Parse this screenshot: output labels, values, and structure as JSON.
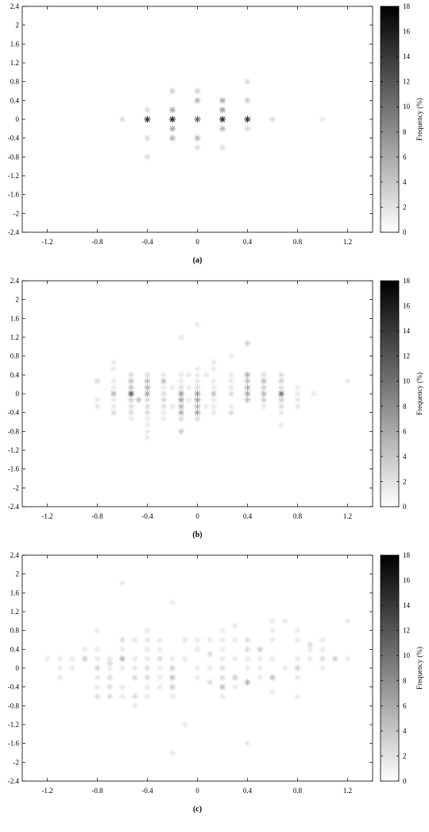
{
  "chart_data": [
    {
      "type": "scatter",
      "panel_label": "(a)",
      "xlim": [
        -1.4,
        1.4
      ],
      "ylim": [
        -2.4,
        2.4
      ],
      "x_ticks": [
        "-1.2",
        "-0.8",
        "-0.4",
        "0",
        "0.4",
        "0.8",
        "1.2"
      ],
      "y_ticks": [
        "-2.4",
        "-2",
        "-1.6",
        "-1.2",
        "-0.8",
        "-0.4",
        "0",
        "0.4",
        "0.8",
        "1.2",
        "1.6",
        "2",
        "2.4"
      ],
      "colorbar": {
        "label": "Frequency (%)",
        "min": 0,
        "max": 18,
        "ticks": [
          "0",
          "2",
          "4",
          "6",
          "8",
          "10",
          "12",
          "14",
          "16",
          "18"
        ]
      },
      "marker": "asterisk",
      "points": [
        [
          -0.6,
          0,
          2
        ],
        [
          -0.4,
          0.2,
          2
        ],
        [
          -0.4,
          0,
          16
        ],
        [
          -0.4,
          -0.4,
          2
        ],
        [
          -0.4,
          -0.8,
          2
        ],
        [
          -0.2,
          0.6,
          3
        ],
        [
          -0.2,
          0.2,
          6
        ],
        [
          -0.2,
          0,
          17
        ],
        [
          -0.2,
          -0.2,
          6
        ],
        [
          -0.2,
          -0.4,
          5
        ],
        [
          0,
          0.6,
          3
        ],
        [
          0,
          0.4,
          5
        ],
        [
          0,
          0,
          12
        ],
        [
          0,
          -0.4,
          5
        ],
        [
          0,
          -0.6,
          2
        ],
        [
          0.2,
          0.4,
          6
        ],
        [
          0.2,
          0.2,
          7
        ],
        [
          0.2,
          0,
          17
        ],
        [
          0.2,
          -0.2,
          5
        ],
        [
          0.2,
          -0.6,
          2
        ],
        [
          0.4,
          0.8,
          2
        ],
        [
          0.4,
          0.4,
          3
        ],
        [
          0.4,
          0,
          16
        ],
        [
          0.4,
          -0.2,
          2
        ],
        [
          0.6,
          0,
          2
        ],
        [
          1.0,
          0,
          1
        ]
      ]
    },
    {
      "type": "scatter",
      "panel_label": "(b)",
      "xlim": [
        -1.4,
        1.4
      ],
      "ylim": [
        -2.4,
        2.4
      ],
      "x_ticks": [
        "-1.2",
        "-0.8",
        "-0.4",
        "0",
        "0.4",
        "0.8",
        "1.2"
      ],
      "y_ticks": [
        "-2.4",
        "-2",
        "-1.6",
        "-1.2",
        "-0.8",
        "-0.4",
        "0",
        "0.4",
        "0.8",
        "1.2",
        "1.6",
        "2",
        "2.4"
      ],
      "colorbar": {
        "label": "Frequency (%)",
        "min": 0,
        "max": 18,
        "ticks": [
          "0",
          "2",
          "4",
          "6",
          "8",
          "10",
          "12",
          "14",
          "16",
          "18"
        ]
      },
      "marker": "asterisk",
      "points": [
        [
          -0.8,
          0.27,
          2
        ],
        [
          -0.8,
          -0.13,
          1
        ],
        [
          -0.8,
          -0.27,
          1
        ],
        [
          -0.67,
          0.67,
          1
        ],
        [
          -0.67,
          0.53,
          1
        ],
        [
          -0.67,
          0.27,
          1
        ],
        [
          -0.67,
          0.13,
          1
        ],
        [
          -0.67,
          0,
          5
        ],
        [
          -0.67,
          -0.13,
          1
        ],
        [
          -0.67,
          -0.27,
          1
        ],
        [
          -0.67,
          -0.4,
          2
        ],
        [
          -0.53,
          0.4,
          2
        ],
        [
          -0.53,
          0.27,
          4
        ],
        [
          -0.53,
          0.13,
          4
        ],
        [
          -0.53,
          0,
          12
        ],
        [
          -0.53,
          -0.13,
          3
        ],
        [
          -0.53,
          -0.27,
          2
        ],
        [
          -0.53,
          -0.4,
          2
        ],
        [
          -0.53,
          -0.53,
          1
        ],
        [
          -0.47,
          -0.13,
          4
        ],
        [
          -0.4,
          0.4,
          2
        ],
        [
          -0.4,
          0.27,
          4
        ],
        [
          -0.4,
          0.13,
          5
        ],
        [
          -0.4,
          0,
          6
        ],
        [
          -0.4,
          -0.13,
          2
        ],
        [
          -0.4,
          -0.27,
          2
        ],
        [
          -0.4,
          -0.4,
          2
        ],
        [
          -0.4,
          -0.53,
          1
        ],
        [
          -0.4,
          -0.67,
          1
        ],
        [
          -0.4,
          -0.8,
          1
        ],
        [
          -0.4,
          -0.93,
          1
        ],
        [
          -0.27,
          0.4,
          1
        ],
        [
          -0.27,
          0.27,
          4
        ],
        [
          -0.27,
          0.13,
          1
        ],
        [
          -0.27,
          0,
          2
        ],
        [
          -0.27,
          -0.13,
          2
        ],
        [
          -0.27,
          -0.27,
          2
        ],
        [
          -0.27,
          -0.4,
          1
        ],
        [
          -0.27,
          -0.53,
          1
        ],
        [
          -0.2,
          0.13,
          1
        ],
        [
          -0.2,
          -0.27,
          1
        ],
        [
          -0.13,
          1.2,
          1
        ],
        [
          -0.13,
          0.4,
          1
        ],
        [
          -0.13,
          0.27,
          1
        ],
        [
          -0.13,
          0.13,
          2
        ],
        [
          -0.13,
          0,
          7
        ],
        [
          -0.13,
          -0.13,
          6
        ],
        [
          -0.13,
          -0.27,
          5
        ],
        [
          -0.13,
          -0.4,
          5
        ],
        [
          -0.13,
          -0.53,
          2
        ],
        [
          -0.13,
          -0.8,
          3
        ],
        [
          -0.07,
          0.4,
          1
        ],
        [
          -0.07,
          0.13,
          1
        ],
        [
          -0.07,
          -0.13,
          1
        ],
        [
          0,
          1.47,
          1
        ],
        [
          0,
          0.53,
          1
        ],
        [
          0,
          0.4,
          1
        ],
        [
          0,
          0.27,
          1
        ],
        [
          0,
          0.13,
          2
        ],
        [
          0,
          0,
          7
        ],
        [
          0,
          -0.13,
          6
        ],
        [
          0,
          -0.27,
          5
        ],
        [
          0,
          -0.4,
          6
        ],
        [
          0,
          -0.53,
          2
        ],
        [
          0.07,
          0.4,
          1
        ],
        [
          0.07,
          -0.27,
          1
        ],
        [
          0.13,
          0.67,
          1
        ],
        [
          0.13,
          0.53,
          1
        ],
        [
          0.13,
          0.27,
          1
        ],
        [
          0.13,
          0.13,
          1
        ],
        [
          0.13,
          0,
          4
        ],
        [
          0.13,
          -0.13,
          1
        ],
        [
          0.13,
          -0.27,
          1
        ],
        [
          0.13,
          -0.4,
          1
        ],
        [
          0.27,
          0.8,
          1
        ],
        [
          0.27,
          0.4,
          1
        ],
        [
          0.27,
          0.27,
          1
        ],
        [
          0.27,
          0.13,
          1
        ],
        [
          0.27,
          0,
          2
        ],
        [
          0.27,
          -0.27,
          1
        ],
        [
          0.27,
          -0.4,
          2
        ],
        [
          0.4,
          1.07,
          3
        ],
        [
          0.4,
          0.4,
          5
        ],
        [
          0.4,
          0.27,
          4
        ],
        [
          0.4,
          0.13,
          5
        ],
        [
          0.4,
          0,
          6
        ],
        [
          0.4,
          -0.13,
          4
        ],
        [
          0.53,
          0.4,
          2
        ],
        [
          0.53,
          0.27,
          4
        ],
        [
          0.53,
          0.13,
          3
        ],
        [
          0.53,
          0,
          5
        ],
        [
          0.53,
          -0.13,
          3
        ],
        [
          0.53,
          -0.27,
          1
        ],
        [
          0.67,
          0.4,
          2
        ],
        [
          0.67,
          0.27,
          3
        ],
        [
          0.67,
          0.13,
          2
        ],
        [
          0.67,
          0,
          10
        ],
        [
          0.67,
          -0.13,
          3
        ],
        [
          0.67,
          -0.27,
          2
        ],
        [
          0.67,
          -0.4,
          1
        ],
        [
          0.67,
          -0.67,
          1
        ],
        [
          0.8,
          0.13,
          1
        ],
        [
          0.8,
          0,
          1
        ],
        [
          0.8,
          -0.13,
          1
        ],
        [
          0.8,
          -0.27,
          1
        ],
        [
          0.93,
          0,
          1
        ],
        [
          1.2,
          0.27,
          1
        ]
      ]
    },
    {
      "type": "scatter",
      "panel_label": "(c)",
      "xlim": [
        -1.4,
        1.4
      ],
      "ylim": [
        -2.4,
        2.4
      ],
      "x_ticks": [
        "-1.2",
        "-0.8",
        "-0.4",
        "0",
        "0.4",
        "0.8",
        "1.2"
      ],
      "y_ticks": [
        "-2.4",
        "-2",
        "-1.6",
        "-1.2",
        "-0.8",
        "-0.4",
        "0",
        "0.4",
        "0.8",
        "1.2",
        "1.6",
        "2",
        "2.4"
      ],
      "colorbar": {
        "label": "Frequency (%)",
        "min": 0,
        "max": 18,
        "ticks": [
          "0",
          "2",
          "4",
          "6",
          "8",
          "10",
          "12",
          "14",
          "16",
          "18"
        ]
      },
      "marker": "asterisk",
      "points": [
        [
          -1.2,
          0.2,
          1
        ],
        [
          -1.1,
          0.2,
          1
        ],
        [
          -1.1,
          0,
          1
        ],
        [
          -1.1,
          -0.2,
          1
        ],
        [
          -1.0,
          0.2,
          1
        ],
        [
          -1.0,
          0,
          1
        ],
        [
          -0.9,
          0.4,
          1
        ],
        [
          -0.9,
          0.2,
          3
        ],
        [
          -0.8,
          0.8,
          1
        ],
        [
          -0.8,
          0.4,
          1
        ],
        [
          -0.8,
          0.2,
          1
        ],
        [
          -0.8,
          0,
          3
        ],
        [
          -0.8,
          -0.2,
          1
        ],
        [
          -0.8,
          -0.4,
          1
        ],
        [
          -0.8,
          -0.6,
          2
        ],
        [
          -0.7,
          0.2,
          1
        ],
        [
          -0.7,
          0.1,
          2
        ],
        [
          -0.7,
          0,
          1
        ],
        [
          -0.7,
          -0.2,
          2
        ],
        [
          -0.7,
          -0.4,
          2
        ],
        [
          -0.7,
          -0.6,
          2
        ],
        [
          -0.6,
          1.8,
          1
        ],
        [
          -0.6,
          0.6,
          2
        ],
        [
          -0.6,
          0.4,
          1
        ],
        [
          -0.6,
          0.2,
          5
        ],
        [
          -0.6,
          0,
          1
        ],
        [
          -0.6,
          -0.4,
          1
        ],
        [
          -0.6,
          -0.6,
          1
        ],
        [
          -0.5,
          0.6,
          1
        ],
        [
          -0.5,
          0.2,
          1
        ],
        [
          -0.5,
          0,
          1
        ],
        [
          -0.5,
          -0.2,
          2
        ],
        [
          -0.5,
          -0.6,
          2
        ],
        [
          -0.5,
          -0.8,
          1
        ],
        [
          -0.4,
          0.8,
          1
        ],
        [
          -0.4,
          0.6,
          1
        ],
        [
          -0.4,
          0.4,
          1
        ],
        [
          -0.4,
          0.2,
          1
        ],
        [
          -0.4,
          0,
          2
        ],
        [
          -0.4,
          -0.2,
          2
        ],
        [
          -0.4,
          -0.4,
          1
        ],
        [
          -0.4,
          -0.6,
          1
        ],
        [
          -0.3,
          0.6,
          1
        ],
        [
          -0.3,
          0.4,
          1
        ],
        [
          -0.3,
          0.2,
          2
        ],
        [
          -0.3,
          0,
          1
        ],
        [
          -0.3,
          -0.2,
          1
        ],
        [
          -0.3,
          -0.4,
          1
        ],
        [
          -0.2,
          1.4,
          1
        ],
        [
          -0.2,
          0.2,
          1
        ],
        [
          -0.2,
          0,
          3
        ],
        [
          -0.2,
          -0.2,
          4
        ],
        [
          -0.2,
          -0.4,
          3
        ],
        [
          -0.2,
          -0.6,
          1
        ],
        [
          -0.2,
          -1.8,
          1
        ],
        [
          -0.1,
          0.6,
          1
        ],
        [
          -0.1,
          0.2,
          1
        ],
        [
          -0.1,
          -1.2,
          1
        ],
        [
          0,
          0.6,
          1
        ],
        [
          0,
          0.4,
          1
        ],
        [
          0,
          0,
          1
        ],
        [
          0,
          -0.2,
          1
        ],
        [
          0.1,
          0.6,
          1
        ],
        [
          0.1,
          0.3,
          2
        ],
        [
          0.1,
          0,
          1
        ],
        [
          0.1,
          -0.3,
          2
        ],
        [
          0.2,
          0.8,
          1
        ],
        [
          0.2,
          0.6,
          1
        ],
        [
          0.2,
          0.4,
          1
        ],
        [
          0.2,
          0.2,
          1
        ],
        [
          0.2,
          0,
          2
        ],
        [
          0.2,
          -0.2,
          2
        ],
        [
          0.2,
          -0.4,
          4
        ],
        [
          0.2,
          -0.6,
          1
        ],
        [
          0.3,
          0.9,
          1
        ],
        [
          0.3,
          0.6,
          1
        ],
        [
          0.3,
          0.2,
          1
        ],
        [
          0.3,
          -0.2,
          3
        ],
        [
          0.3,
          -0.4,
          1
        ],
        [
          0.4,
          0.6,
          2
        ],
        [
          0.4,
          0.4,
          2
        ],
        [
          0.4,
          0.2,
          1
        ],
        [
          0.4,
          0,
          1
        ],
        [
          0.4,
          -0.3,
          5
        ],
        [
          0.4,
          -1.6,
          1
        ],
        [
          0.5,
          0.4,
          3
        ],
        [
          0.5,
          0.2,
          1
        ],
        [
          0.5,
          0,
          1
        ],
        [
          0.5,
          -0.2,
          1
        ],
        [
          0.6,
          1.0,
          1
        ],
        [
          0.6,
          0.8,
          1
        ],
        [
          0.6,
          0.6,
          1
        ],
        [
          0.6,
          0.2,
          1
        ],
        [
          0.6,
          -0.2,
          4
        ],
        [
          0.6,
          -0.5,
          1
        ],
        [
          0.7,
          1.0,
          1
        ],
        [
          0.7,
          0,
          1
        ],
        [
          0.8,
          0.8,
          1
        ],
        [
          0.8,
          0.6,
          1
        ],
        [
          0.8,
          0.2,
          1
        ],
        [
          0.8,
          0,
          3
        ],
        [
          0.8,
          -0.2,
          1
        ],
        [
          0.8,
          -0.6,
          1
        ],
        [
          0.9,
          0.5,
          2
        ],
        [
          0.9,
          0.4,
          1
        ],
        [
          0.9,
          0.2,
          1
        ],
        [
          1.0,
          0.6,
          1
        ],
        [
          1.0,
          0.4,
          1
        ],
        [
          1.0,
          0.2,
          2
        ],
        [
          1.0,
          0,
          1
        ],
        [
          1.1,
          0.2,
          3
        ],
        [
          1.2,
          1.0,
          1
        ],
        [
          1.2,
          0.2,
          1
        ]
      ]
    }
  ]
}
